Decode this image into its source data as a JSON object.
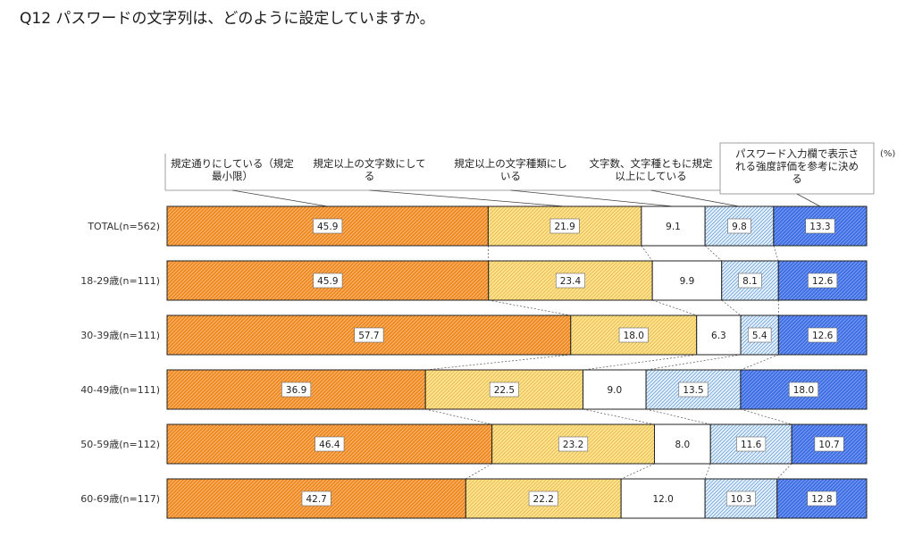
{
  "title": "Q12 パスワードの文字列は、どのように設定していますか。",
  "chart_data": {
    "type": "bar",
    "orientation": "horizontal",
    "stacked": "100%",
    "unit_label": "(%)",
    "xlim": [
      0,
      100
    ],
    "grid": false,
    "legend_position": "top",
    "categories": [
      "TOTAL(n=562)",
      "18-29歳(n=111)",
      "30-39歳(n=111)",
      "40-49歳(n=111)",
      "50-59歳(n=112)",
      "60-69歳(n=117)"
    ],
    "series": [
      {
        "name": [
          "規定通りにしている（規定",
          "最小限）"
        ],
        "color": "#f08a20",
        "values": [
          45.9,
          45.9,
          57.7,
          36.9,
          46.4,
          42.7
        ]
      },
      {
        "name": [
          "規定以上の文字数にして",
          "る"
        ],
        "color": "#fce27a",
        "values": [
          21.9,
          23.4,
          18.0,
          22.5,
          23.2,
          22.2
        ]
      },
      {
        "name": [
          "規定以上の文字種類にし",
          "いる"
        ],
        "color": "#ffffff",
        "values": [
          9.1,
          9.9,
          6.3,
          9.0,
          8.0,
          12.0
        ]
      },
      {
        "name": [
          "文字数、文字種ともに規定",
          "以上にしている"
        ],
        "color": "#bcd9f2",
        "values": [
          9.8,
          8.1,
          5.4,
          13.5,
          11.6,
          10.3
        ]
      },
      {
        "name": [
          "パスワード入力欄で表示さ",
          "れる強度評価を参考に決め",
          "る"
        ],
        "color": "#3c6ae0",
        "values": [
          13.3,
          12.6,
          12.6,
          18.0,
          10.7,
          12.8
        ]
      }
    ]
  }
}
